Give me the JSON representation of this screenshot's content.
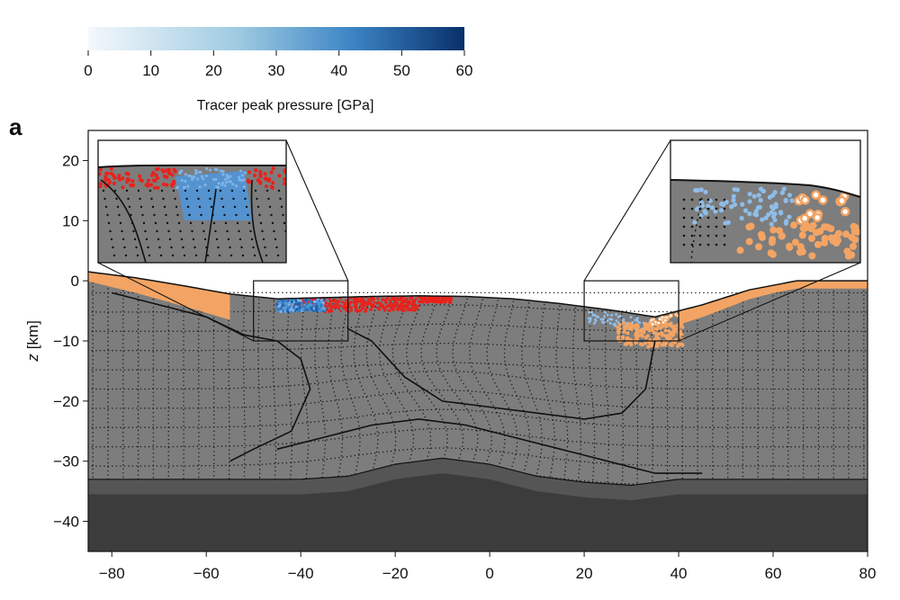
{
  "chart_data": {
    "type": "heatmap",
    "panel_label": "a",
    "colorbar": {
      "label": "Tracer peak pressure [GPa]",
      "ticks": [
        "0",
        "10",
        "20",
        "30",
        "40",
        "50",
        "60"
      ],
      "range": [
        0,
        60
      ],
      "colors": [
        "#f4f8fc",
        "#9ecae1",
        "#3d85c6",
        "#08306b"
      ]
    },
    "xlim": [
      -85,
      80
    ],
    "ylim": [
      -45,
      25
    ],
    "x_ticks": [
      "−80",
      "−60",
      "−40",
      "−20",
      "0",
      "20",
      "40",
      "60",
      "80"
    ],
    "x_tick_values": [
      -80,
      -60,
      -40,
      -20,
      0,
      20,
      40,
      60,
      80
    ],
    "y_ticks": [
      "20",
      "10",
      "0",
      "−10",
      "−20",
      "−30",
      "−40"
    ],
    "y_tick_values": [
      20,
      10,
      0,
      -10,
      -20,
      -30,
      -40
    ],
    "ylabel_symbol": "z",
    "ylabel_unit": "[km]",
    "surface_profile": {
      "x": [
        -85,
        -75,
        -65,
        -55,
        -45,
        -35,
        -25,
        -15,
        -5,
        5,
        15,
        25,
        35,
        45,
        55,
        65,
        80
      ],
      "z": [
        1.5,
        0.5,
        -0.8,
        -2.2,
        -3.0,
        -2.8,
        -2.6,
        -2.5,
        -2.6,
        -3.0,
        -3.8,
        -4.8,
        -6.0,
        -4.0,
        -1.5,
        0.0,
        0.0
      ]
    },
    "crust_mantle_boundary": {
      "x": [
        -85,
        -40,
        -30,
        -20,
        -10,
        0,
        10,
        20,
        30,
        40,
        80
      ],
      "z": [
        -33,
        -33,
        -32.5,
        -30.5,
        -29.5,
        -30.5,
        -32.5,
        -33.5,
        -34,
        -33,
        -33
      ]
    },
    "zoom_boxes": [
      {
        "x": [
          -50,
          -30
        ],
        "z": [
          -10,
          0
        ],
        "inset": "left"
      },
      {
        "x": [
          20,
          40
        ],
        "z": [
          -10,
          0
        ],
        "inset": "right"
      }
    ],
    "colors": {
      "crust": "#7d7d7d",
      "mantle": "#3c3c3c",
      "mantle_band": "#555555",
      "sediment": "#f3a464",
      "high_pressure_melt": "#e8221c",
      "shocked": "#3f8fd8"
    }
  }
}
